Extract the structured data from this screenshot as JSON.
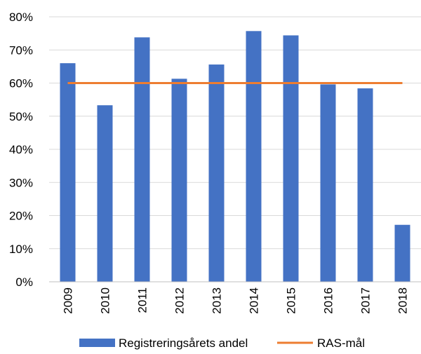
{
  "chart_data": {
    "type": "bar",
    "categories": [
      "2009",
      "2010",
      "2011",
      "2012",
      "2013",
      "2014",
      "2015",
      "2016",
      "2017",
      "2018"
    ],
    "series": [
      {
        "name": "Registreringsårets andel",
        "type": "bar",
        "color": "#4472C4",
        "values": [
          66,
          53.3,
          73.8,
          61.3,
          65.6,
          75.7,
          74.4,
          59.6,
          58.4,
          17.2
        ]
      },
      {
        "name": "RAS-mål",
        "type": "line",
        "color": "#ED7D31",
        "values": [
          60,
          60,
          60,
          60,
          60,
          60,
          60,
          60,
          60,
          60
        ]
      }
    ],
    "y_ticks": [
      "0%",
      "10%",
      "20%",
      "30%",
      "40%",
      "50%",
      "60%",
      "70%",
      "80%"
    ],
    "ylim": [
      0,
      80
    ],
    "y_unit": "%",
    "grid": true,
    "legend_position": "bottom",
    "title": "",
    "xlabel": "",
    "ylabel": ""
  }
}
